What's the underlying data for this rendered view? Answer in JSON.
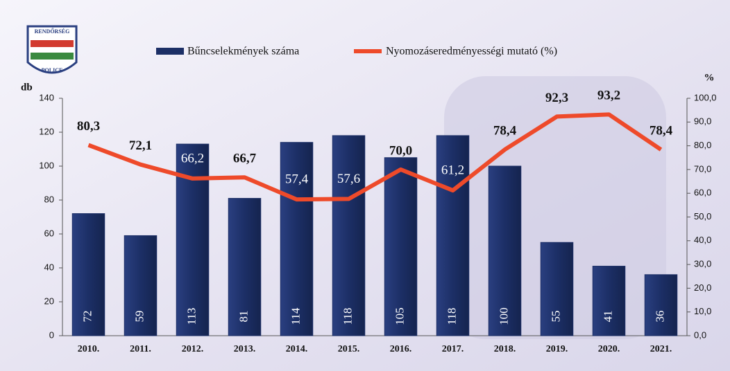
{
  "chart_data": {
    "type": "bar-line",
    "logo": {
      "top": "RENDŐRSÉG",
      "bottom": "POLICE"
    },
    "ylabel": "db",
    "y2label": "%",
    "categories": [
      "2010.",
      "2011.",
      "2012.",
      "2013.",
      "2014.",
      "2015.",
      "2016.",
      "2017.",
      "2018.",
      "2019.",
      "2020.",
      "2021."
    ],
    "series": [
      {
        "name": "Bűncselekmények száma",
        "type": "bar",
        "color": "#1c2f66",
        "values": [
          72,
          59,
          113,
          81,
          114,
          118,
          105,
          118,
          100,
          55,
          41,
          36
        ]
      },
      {
        "name": "Nyomozáseredményességi mutató (%)",
        "type": "line",
        "color": "#ee4a2a",
        "axis": "y2",
        "values": [
          80.3,
          72.1,
          66.2,
          66.7,
          57.4,
          57.6,
          70.0,
          61.2,
          78.4,
          92.3,
          93.2,
          78.4
        ],
        "value_labels": [
          "80,3",
          "72,1",
          "66,2",
          "66,7",
          "57,4",
          "57,6",
          "70,0",
          "61,2",
          "78,4",
          "92,3",
          "93,2",
          "78,4"
        ]
      }
    ],
    "ylim": [
      0,
      140
    ],
    "yticks": [
      0,
      20,
      40,
      60,
      80,
      100,
      120,
      140
    ],
    "y2lim": [
      0,
      100
    ],
    "y2ticks": [
      {
        "value": 0,
        "label": "0,0"
      },
      {
        "value": 10,
        "label": "10,0"
      },
      {
        "value": 20,
        "label": "20,0"
      },
      {
        "value": 30,
        "label": "30,0"
      },
      {
        "value": 40,
        "label": "40,0"
      },
      {
        "value": 50,
        "label": "50,0"
      },
      {
        "value": 60,
        "label": "60,0"
      },
      {
        "value": 70,
        "label": "70,0"
      },
      {
        "value": 80,
        "label": "80,0"
      },
      {
        "value": 90,
        "label": "90,0"
      },
      {
        "value": 100,
        "label": "100,0"
      }
    ]
  }
}
